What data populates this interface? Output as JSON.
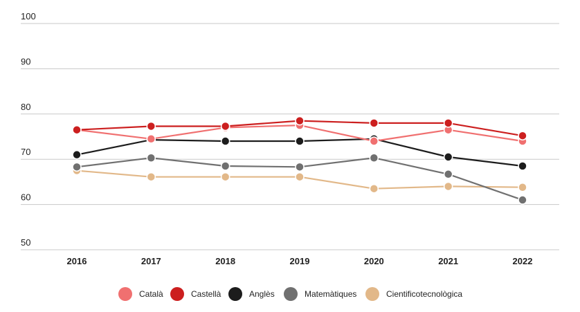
{
  "chart_data": {
    "type": "line",
    "title": "",
    "xlabel": "",
    "ylabel": "",
    "x": [
      "2016",
      "2017",
      "2018",
      "2019",
      "2020",
      "2021",
      "2022"
    ],
    "ylim": [
      50,
      100
    ],
    "yticks": [
      "100",
      "90",
      "80",
      "70",
      "60",
      "50"
    ],
    "grid": true,
    "legend_position": "bottom",
    "series": [
      {
        "name": "Català",
        "color": "#f07070",
        "values": [
          76.5,
          74.5,
          77.0,
          77.5,
          74.0,
          76.5,
          74.0
        ]
      },
      {
        "name": "Castellà",
        "color": "#cc1f1f",
        "values": [
          76.5,
          77.3,
          77.3,
          78.5,
          78.0,
          78.0,
          75.2
        ]
      },
      {
        "name": "Anglès",
        "color": "#1c1c1c",
        "values": [
          71.0,
          74.3,
          74.0,
          74.0,
          74.5,
          70.5,
          68.5
        ]
      },
      {
        "name": "Matemàtiques",
        "color": "#707070",
        "values": [
          68.3,
          70.3,
          68.5,
          68.3,
          70.3,
          66.7,
          61.0
        ]
      },
      {
        "name": "Cientificotecnològica",
        "color": "#e2b889",
        "values": [
          67.5,
          66.1,
          66.1,
          66.1,
          63.5,
          64.0,
          63.8
        ]
      }
    ]
  }
}
